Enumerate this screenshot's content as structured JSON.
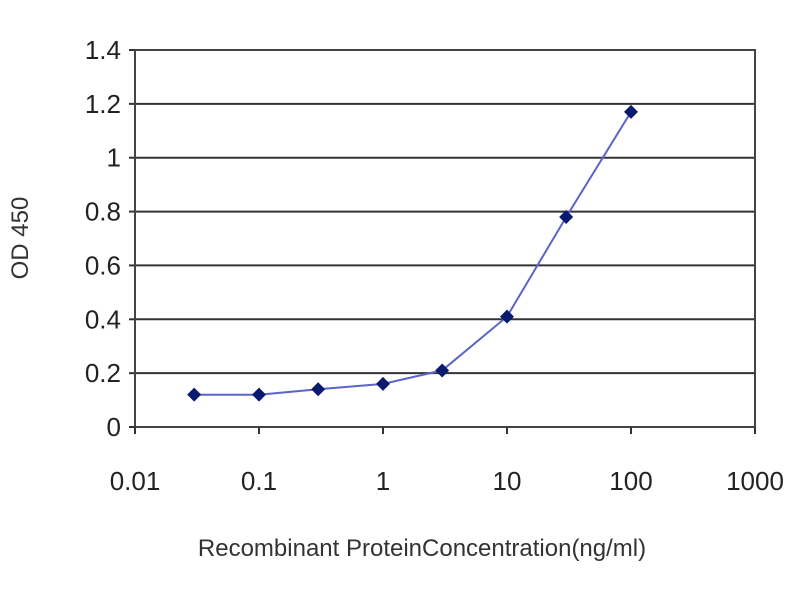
{
  "chart_data": {
    "type": "line",
    "title": "",
    "xlabel": "Recombinant ProteinConcentration(ng/ml)",
    "ylabel": "OD 450",
    "x_scale": "log",
    "xlim": [
      0.01,
      1000
    ],
    "ylim": [
      0,
      1.4
    ],
    "x_ticks": [
      "0.01",
      "0.1",
      "1",
      "10",
      "100",
      "1000"
    ],
    "y_ticks": [
      "0",
      "0.2",
      "0.4",
      "0.6",
      "0.8",
      "1",
      "1.2",
      "1.4"
    ],
    "grid": "horizontal",
    "legend": "none",
    "series": [
      {
        "x": [
          0.03,
          0.1,
          0.3,
          1,
          3,
          10,
          30,
          100
        ],
        "y": [
          0.12,
          0.12,
          0.14,
          0.16,
          0.21,
          0.41,
          0.78,
          1.17
        ],
        "color": "#0a1a6e"
      }
    ]
  }
}
